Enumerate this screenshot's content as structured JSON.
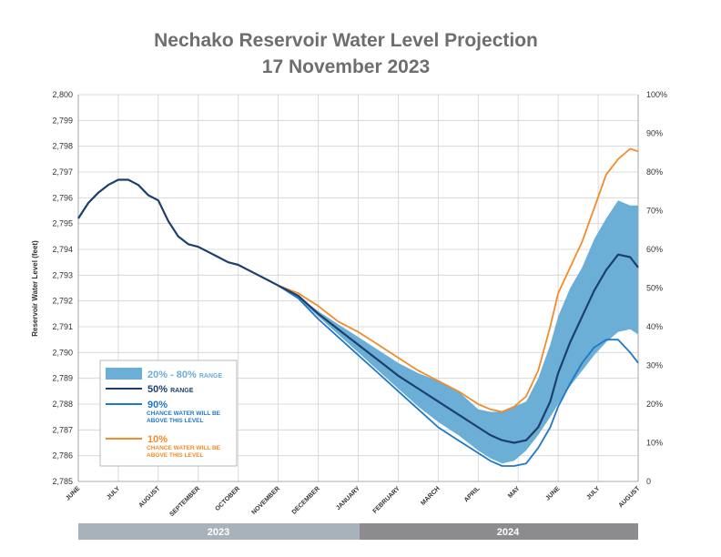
{
  "chart_data": {
    "type": "area",
    "title": "Nechako Reservoir Water Level Projection",
    "subtitle": "17 November 2023",
    "ylabel": "Reservoir Water Level (feet)",
    "ylim": [
      2785,
      2800
    ],
    "y_ticks": [
      "2,800",
      "2,799",
      "2,798",
      "2,797",
      "2,796",
      "2,795",
      "2,794",
      "2,793",
      "2,792",
      "2,791",
      "2,790",
      "2,789",
      "2,788",
      "2,787",
      "2,786",
      "2,785"
    ],
    "y2lim": [
      0,
      100
    ],
    "y2_ticks": [
      "100%",
      "90%",
      "80%",
      "70%",
      "60%",
      "50%",
      "40%",
      "30%",
      "20%",
      "10%",
      "0"
    ],
    "x_ticks": [
      "JUNE",
      "JULY",
      "AUGUST",
      "SEPTEMBER",
      "OCTOBER",
      "NOVEMBER",
      "DECEMBER",
      "JANUARY",
      "FEBRUARY",
      "MARCH",
      "APRIL",
      "MAY",
      "JUNE",
      "JULY",
      "AUGUST"
    ],
    "years": [
      "2023",
      "2024"
    ],
    "grid": true,
    "legend_position": "bottom-left",
    "x_unit": "months since 1 June 2023",
    "series": [
      {
        "name": "20% - 80%",
        "name_suffix": "RANGE",
        "kind": "band",
        "color": "#6baed6",
        "x": [
          5.0,
          5.5,
          6.0,
          6.5,
          7.0,
          7.5,
          8.0,
          8.5,
          9.0,
          9.5,
          10.0,
          10.3,
          10.6,
          10.9,
          11.2,
          11.5,
          11.8,
          12.0,
          12.3,
          12.6,
          12.9,
          13.2,
          13.5,
          13.8,
          14.0
        ],
        "upper": [
          2792.6,
          2792.2,
          2791.6,
          2791.1,
          2790.6,
          2790.1,
          2789.6,
          2789.2,
          2788.9,
          2788.5,
          2787.8,
          2787.7,
          2787.7,
          2787.9,
          2788.1,
          2789.0,
          2790.3,
          2791.4,
          2792.5,
          2793.3,
          2794.4,
          2795.2,
          2795.9,
          2795.7,
          2795.7
        ],
        "lower": [
          2792.6,
          2792.1,
          2791.4,
          2790.7,
          2790.0,
          2789.3,
          2788.6,
          2787.9,
          2787.3,
          2786.8,
          2786.2,
          2785.9,
          2785.7,
          2785.8,
          2786.2,
          2786.8,
          2787.5,
          2788.0,
          2788.7,
          2789.3,
          2789.9,
          2790.4,
          2790.8,
          2790.9,
          2790.7
        ]
      },
      {
        "name": "50%",
        "name_suffix": "RANGE",
        "kind": "line",
        "color": "#1c3f6e",
        "x": [
          0.0,
          0.25,
          0.5,
          0.75,
          1.0,
          1.25,
          1.5,
          1.75,
          2.0,
          2.25,
          2.5,
          2.75,
          3.0,
          3.25,
          3.5,
          3.75,
          4.0,
          4.25,
          4.5,
          4.75,
          5.0,
          5.5,
          6.0,
          6.5,
          7.0,
          7.5,
          8.0,
          8.5,
          9.0,
          9.5,
          10.0,
          10.3,
          10.6,
          10.9,
          11.2,
          11.5,
          11.8,
          12.0,
          12.3,
          12.6,
          12.9,
          13.2,
          13.5,
          13.8,
          14.0
        ],
        "values": [
          2795.2,
          2795.8,
          2796.2,
          2796.5,
          2796.7,
          2796.7,
          2796.5,
          2796.1,
          2795.9,
          2795.1,
          2794.5,
          2794.2,
          2794.1,
          2793.9,
          2793.7,
          2793.5,
          2793.4,
          2793.2,
          2793.0,
          2792.8,
          2792.6,
          2792.2,
          2791.5,
          2790.9,
          2790.3,
          2789.7,
          2789.1,
          2788.6,
          2788.1,
          2787.6,
          2787.1,
          2786.8,
          2786.6,
          2786.5,
          2786.6,
          2787.1,
          2788.1,
          2789.2,
          2790.4,
          2791.4,
          2792.4,
          2793.2,
          2793.8,
          2793.7,
          2793.3
        ]
      },
      {
        "name": "90%",
        "name_suffix": "CHANCE WATER WILL BE ABOVE THIS LEVEL",
        "kind": "line",
        "color": "#1f78c8",
        "x": [
          5.0,
          5.5,
          6.0,
          6.5,
          7.0,
          7.5,
          8.0,
          8.5,
          9.0,
          9.5,
          10.0,
          10.3,
          10.6,
          10.9,
          11.2,
          11.5,
          11.8,
          12.0,
          12.3,
          12.6,
          12.9,
          13.2,
          13.5,
          13.8,
          14.0
        ],
        "values": [
          2792.6,
          2792.1,
          2791.3,
          2790.6,
          2789.9,
          2789.2,
          2788.5,
          2787.8,
          2787.1,
          2786.6,
          2786.1,
          2785.8,
          2785.6,
          2785.6,
          2785.7,
          2786.3,
          2787.1,
          2787.9,
          2788.8,
          2789.6,
          2790.2,
          2790.5,
          2790.5,
          2790.0,
          2789.6
        ]
      },
      {
        "name": "10%",
        "name_suffix": "CHANCE WATER WILL BE ABOVE THIS LEVEL",
        "kind": "line",
        "color": "#f28c28",
        "x": [
          5.0,
          5.5,
          6.0,
          6.5,
          7.0,
          7.5,
          8.0,
          8.5,
          9.0,
          9.5,
          10.0,
          10.3,
          10.6,
          10.9,
          11.2,
          11.5,
          11.8,
          12.0,
          12.3,
          12.6,
          12.9,
          13.2,
          13.5,
          13.8,
          14.0
        ],
        "values": [
          2792.6,
          2792.3,
          2791.8,
          2791.2,
          2790.8,
          2790.3,
          2789.8,
          2789.3,
          2788.9,
          2788.5,
          2788.0,
          2787.8,
          2787.7,
          2787.9,
          2788.3,
          2789.3,
          2791.0,
          2792.3,
          2793.3,
          2794.3,
          2795.6,
          2796.9,
          2797.5,
          2797.9,
          2797.8
        ]
      }
    ]
  }
}
